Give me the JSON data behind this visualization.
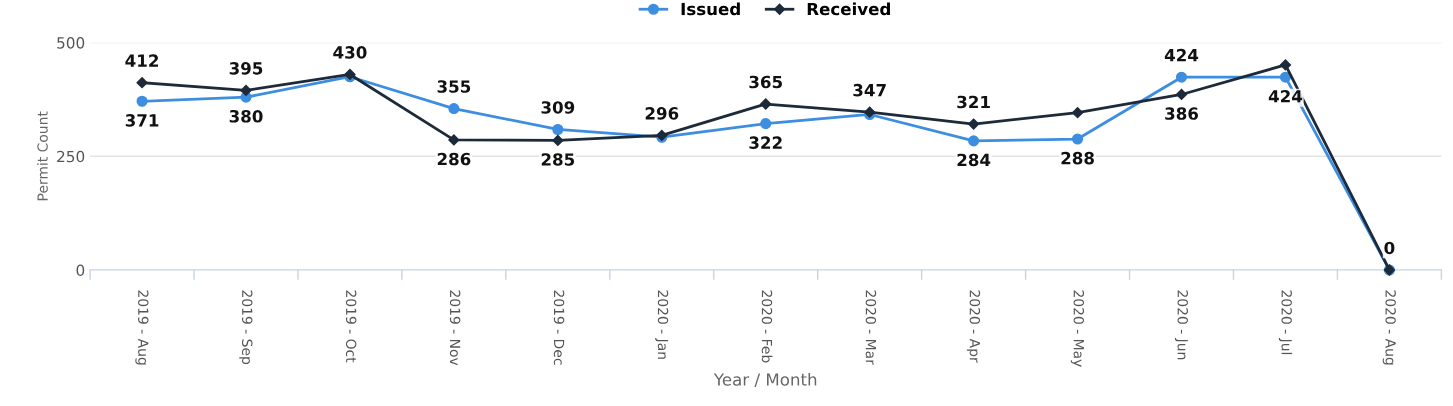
{
  "chart_data": {
    "type": "line",
    "xlabel": "Year / Month",
    "ylabel": "Permit Count",
    "categories": [
      "2019 - Aug",
      "2019 - Sep",
      "2019 - Oct",
      "2019 - Nov",
      "2019 - Dec",
      "2020 - Jan",
      "2020 - Feb",
      "2020 - Mar",
      "2020 - Apr",
      "2020 - May",
      "2020 - Jun",
      "2020 - Jul",
      "2020 - Aug"
    ],
    "series": [
      {
        "name": "Issued",
        "color": "#3d8ee0",
        "marker": "circle",
        "values": [
          371,
          380,
          425,
          355,
          309,
          292,
          322,
          342,
          284,
          288,
          424,
          424,
          0
        ],
        "value_labels": [
          "371",
          "380",
          null,
          "355",
          "309",
          null,
          "322",
          null,
          "284",
          "288",
          "424",
          "424",
          null
        ]
      },
      {
        "name": "Received",
        "color": "#1c2a3a",
        "marker": "diamond",
        "values": [
          412,
          395,
          430,
          286,
          285,
          296,
          365,
          347,
          321,
          346,
          386,
          451,
          0
        ],
        "value_labels": [
          "412",
          "395",
          "430",
          "286",
          "285",
          "296",
          "365",
          "347",
          "321",
          null,
          "386",
          null,
          "0"
        ]
      }
    ],
    "ylim": [
      0,
      500
    ],
    "yticks": [
      0,
      250,
      500
    ],
    "grid": "y",
    "legend": "top"
  }
}
